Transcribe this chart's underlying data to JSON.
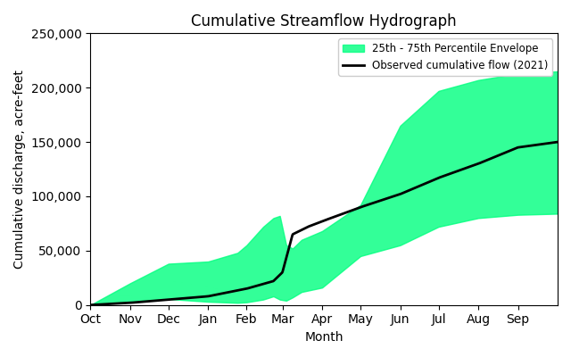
{
  "title": "Cumulative Streamflow Hydrograph",
  "xlabel": "Month",
  "ylabel": "Cumulative discharge, acre-feet",
  "ylim": [
    0,
    250000
  ],
  "yticks": [
    0,
    50000,
    100000,
    150000,
    200000,
    250000
  ],
  "months": [
    "Oct",
    "Nov",
    "Dec",
    "Jan",
    "Feb",
    "Mar",
    "Apr",
    "May",
    "Jun",
    "Jul",
    "Aug",
    "Sep"
  ],
  "fill_color": "#00ff7f",
  "fill_alpha": 0.8,
  "line_color": "black",
  "line_width": 2.0,
  "legend_envelope": "25th - 75th Percentile Envelope",
  "legend_observed": "Observed cumulative flow (2021)",
  "background_color": "white",
  "p25_x": [
    0,
    31,
    61,
    92,
    115,
    122,
    135,
    143,
    148,
    153,
    158,
    165,
    181,
    211,
    242,
    272,
    303,
    334,
    365
  ],
  "p25_y": [
    0,
    3000,
    5500,
    3000,
    2000,
    2500,
    5000,
    8000,
    5000,
    4000,
    7000,
    12000,
    16000,
    45000,
    55000,
    72000,
    80000,
    83000,
    84000
  ],
  "p75_x": [
    0,
    31,
    61,
    92,
    115,
    122,
    135,
    143,
    148,
    153,
    158,
    165,
    181,
    211,
    242,
    272,
    303,
    334,
    365
  ],
  "p75_y": [
    0,
    20000,
    38000,
    40000,
    48000,
    55000,
    72000,
    80000,
    82000,
    55000,
    52000,
    60000,
    68000,
    92000,
    165000,
    197000,
    207000,
    213000,
    215000
  ],
  "obs_x": [
    0,
    31,
    61,
    92,
    122,
    143,
    150,
    158,
    170,
    181,
    211,
    242,
    272,
    303,
    334,
    365
  ],
  "obs_y": [
    0,
    2000,
    5000,
    8000,
    15000,
    22000,
    30000,
    65000,
    72000,
    77000,
    90000,
    102000,
    117000,
    130000,
    145000,
    150000
  ],
  "month_days": [
    0,
    31,
    61,
    92,
    122,
    150,
    181,
    211,
    242,
    272,
    303,
    334
  ]
}
